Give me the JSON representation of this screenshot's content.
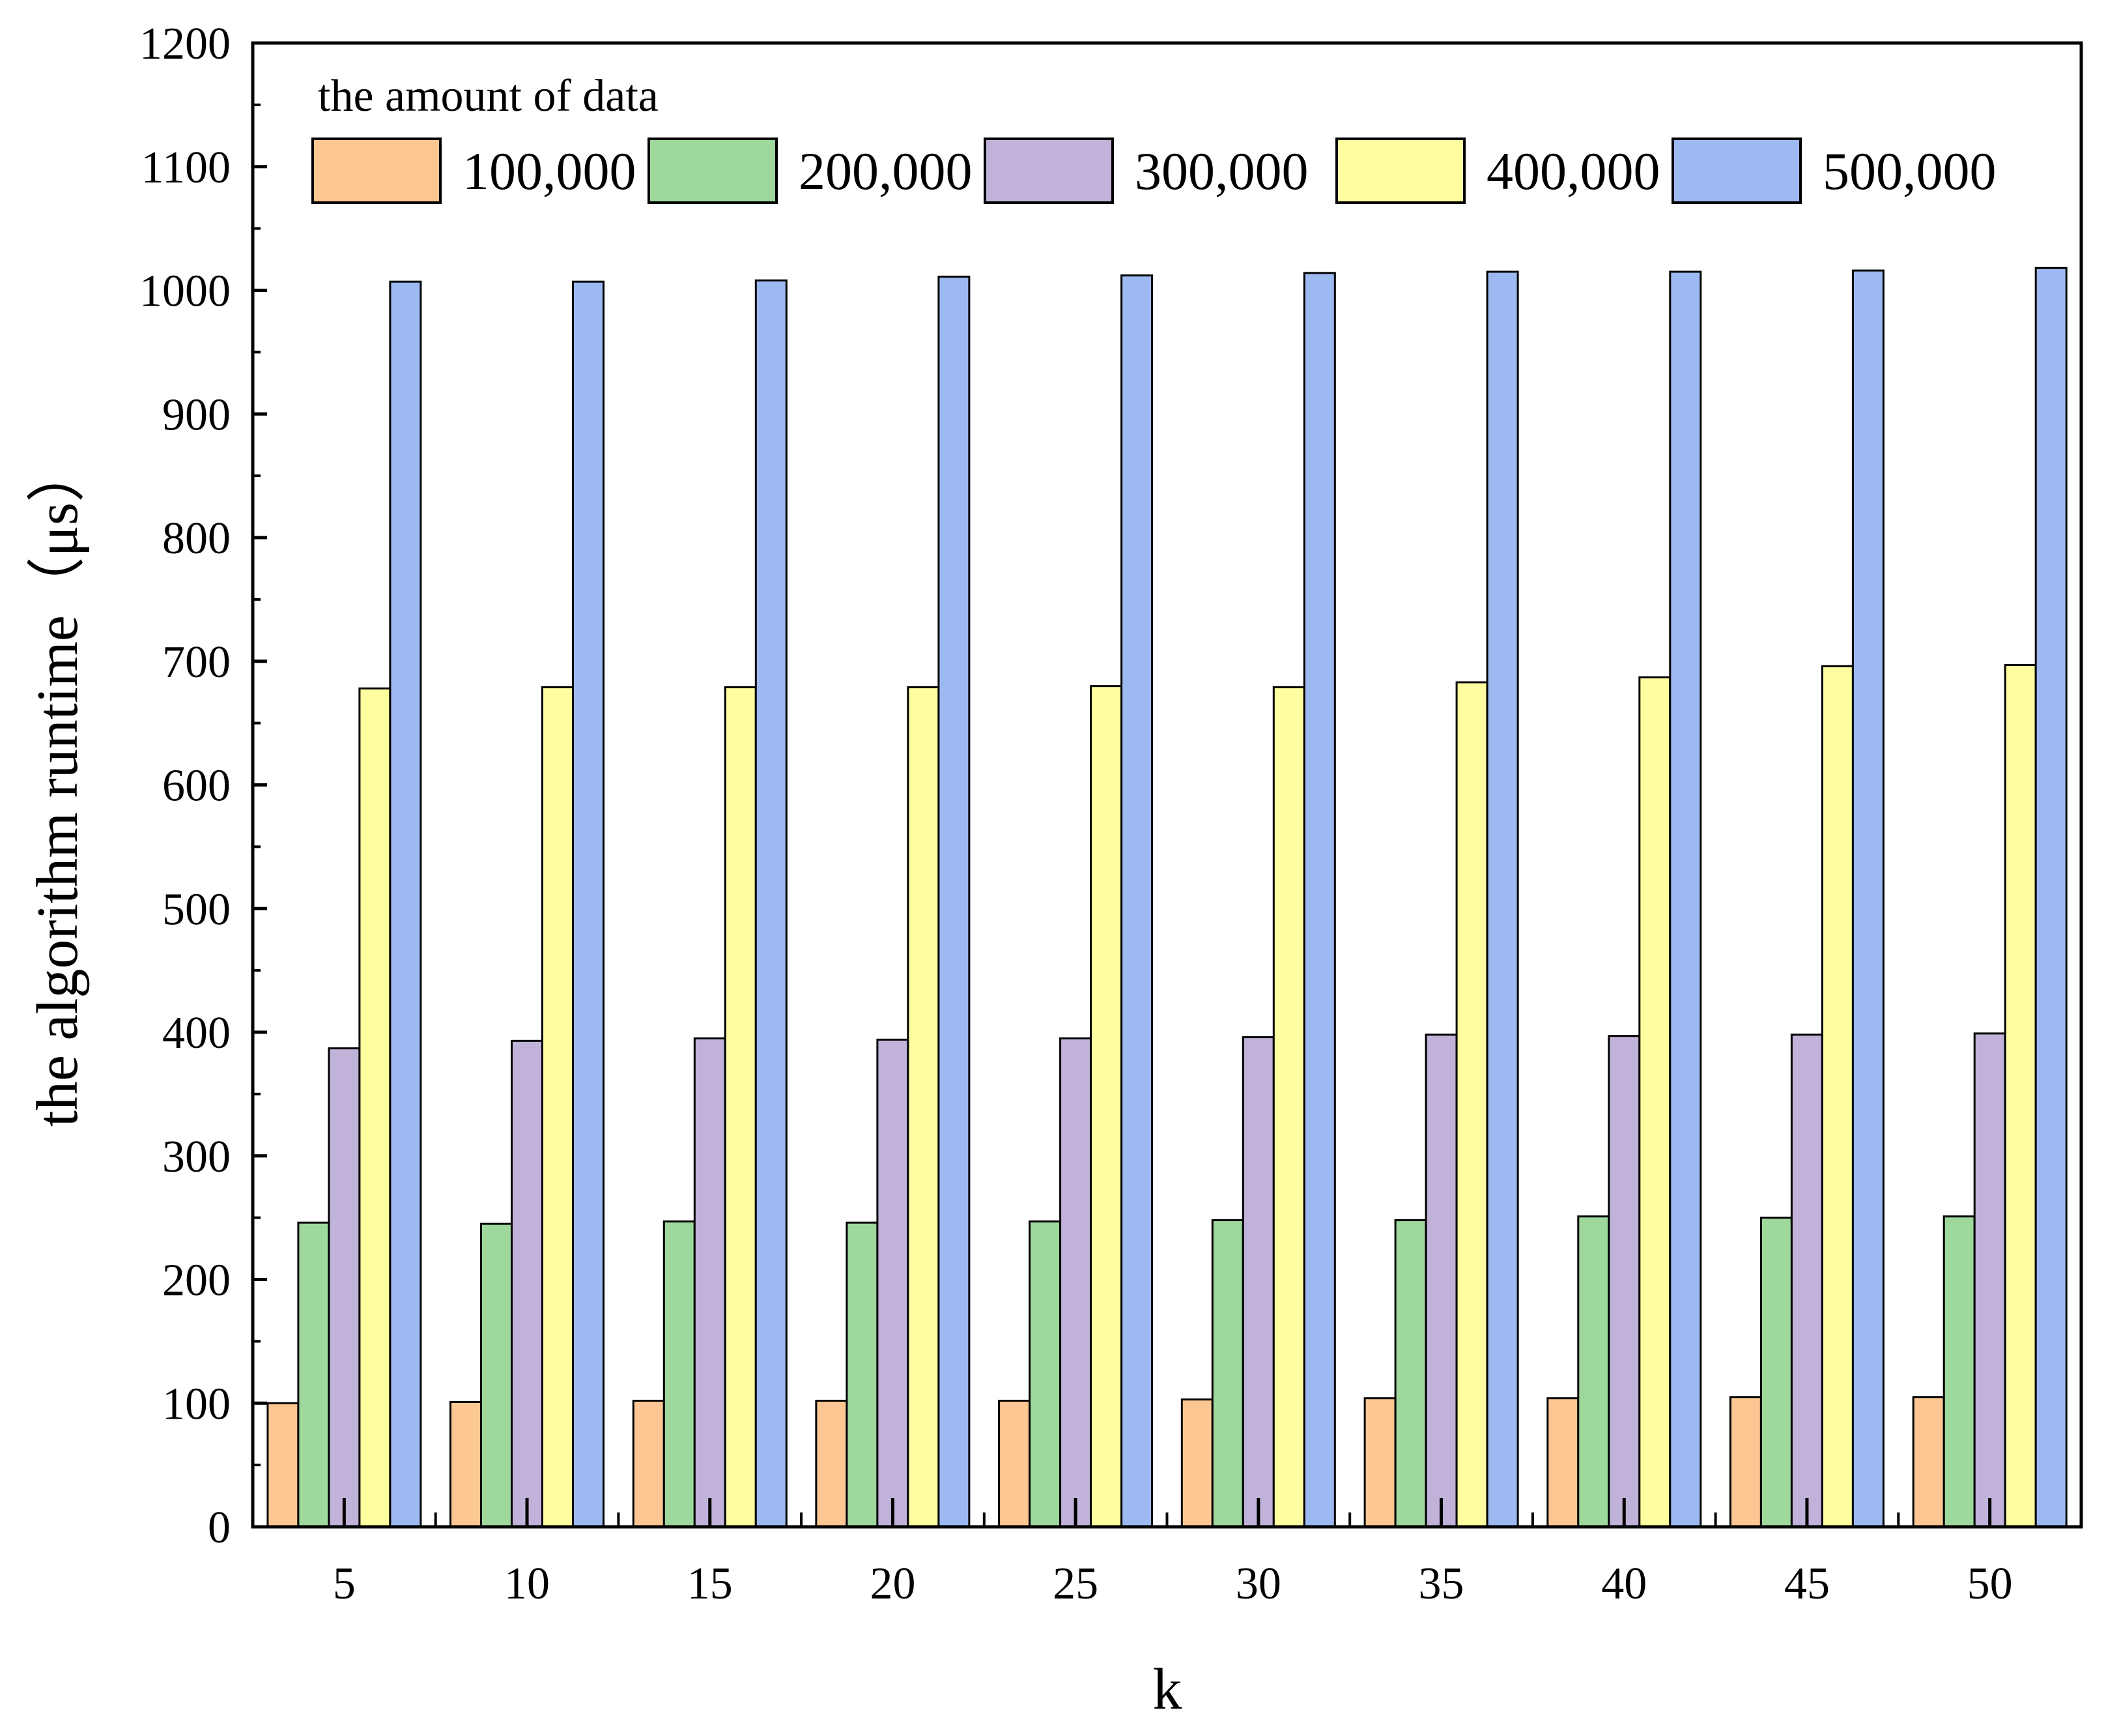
{
  "chart_data": {
    "type": "bar",
    "title": "",
    "xlabel": "k",
    "ylabel": "the algorithm runtime（μs）",
    "ylim": [
      0,
      1200
    ],
    "yticks": [
      0,
      100,
      200,
      300,
      400,
      500,
      600,
      700,
      800,
      900,
      1000,
      1100,
      1200
    ],
    "yticks_labels": [
      "0",
      "100",
      "200",
      "300",
      "400",
      "500",
      "600",
      "700",
      "800",
      "900",
      "1000",
      "1100",
      "1200"
    ],
    "categories": [
      "5",
      "10",
      "15",
      "20",
      "25",
      "30",
      "35",
      "40",
      "45",
      "50"
    ],
    "legend": {
      "title": "the amount of data",
      "position": "top-left, horizontal"
    },
    "grid": false,
    "series": [
      {
        "name": "100,000",
        "color": "#FCC793",
        "values": [
          100,
          101,
          102,
          102,
          102,
          103,
          104,
          104,
          105,
          105
        ]
      },
      {
        "name": "200,000",
        "color": "#9ED89C",
        "values": [
          246,
          245,
          247,
          246,
          247,
          248,
          248,
          251,
          250,
          251
        ]
      },
      {
        "name": "300,000",
        "color": "#C0B2D8",
        "values": [
          387,
          393,
          395,
          394,
          395,
          396,
          398,
          397,
          398,
          399
        ]
      },
      {
        "name": "400,000",
        "color": "#FEFEA0",
        "values": [
          678,
          679,
          679,
          679,
          680,
          679,
          683,
          687,
          696,
          697
        ]
      },
      {
        "name": "500,000",
        "color": "#9DB9F1",
        "values": [
          1007,
          1007,
          1008,
          1011,
          1012,
          1014,
          1015,
          1015,
          1016,
          1018
        ]
      }
    ]
  }
}
